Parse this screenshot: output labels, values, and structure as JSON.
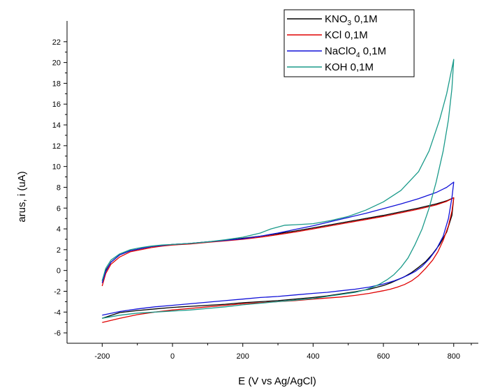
{
  "chart_data": {
    "type": "line",
    "xlabel": "E (V vs Ag/AgCl)",
    "ylabel": "arus, i (uA)",
    "xlim": [
      -300,
      870
    ],
    "ylim": [
      -7,
      24
    ],
    "x_ticks": [
      -200,
      0,
      200,
      400,
      600,
      800
    ],
    "y_ticks": [
      -6,
      -4,
      -2,
      0,
      2,
      4,
      6,
      8,
      10,
      12,
      14,
      16,
      18,
      20,
      22
    ],
    "grid": false,
    "legend_position": "top-right",
    "series": [
      {
        "name": "KNO3 0,1M",
        "legend_main": "KNO",
        "legend_sub": "3",
        "legend_rest": " 0,1M",
        "color": "#000000",
        "x": [
          -200,
          -190,
          -175,
          -150,
          -120,
          -90,
          -60,
          -30,
          0,
          50,
          100,
          150,
          200,
          250,
          300,
          350,
          400,
          450,
          500,
          550,
          600,
          650,
          700,
          750,
          780,
          800,
          795,
          780,
          760,
          740,
          720,
          700,
          680,
          660,
          640,
          620,
          600,
          560,
          520,
          480,
          440,
          400,
          350,
          300,
          250,
          200,
          150,
          100,
          50,
          0,
          -50,
          -100,
          -150,
          -200
        ],
        "y": [
          -1.0,
          0.0,
          0.8,
          1.5,
          1.9,
          2.1,
          2.3,
          2.4,
          2.5,
          2.6,
          2.75,
          2.9,
          3.1,
          3.3,
          3.55,
          3.8,
          4.1,
          4.4,
          4.7,
          5.0,
          5.3,
          5.65,
          6.0,
          6.4,
          6.7,
          7.0,
          5.3,
          3.7,
          2.5,
          1.6,
          0.85,
          0.3,
          -0.2,
          -0.6,
          -0.9,
          -1.2,
          -1.45,
          -1.8,
          -2.05,
          -2.25,
          -2.45,
          -2.6,
          -2.75,
          -2.9,
          -3.0,
          -3.1,
          -3.25,
          -3.35,
          -3.45,
          -3.55,
          -3.7,
          -3.85,
          -4.05,
          -4.6
        ]
      },
      {
        "name": "KCl 0,1M",
        "legend_main": "KCl 0,1M",
        "legend_sub": "",
        "legend_rest": "",
        "color": "#e00000",
        "x": [
          -200,
          -190,
          -175,
          -150,
          -120,
          -90,
          -60,
          -30,
          0,
          50,
          100,
          150,
          200,
          250,
          300,
          350,
          400,
          450,
          500,
          550,
          600,
          650,
          700,
          750,
          780,
          800,
          795,
          785,
          770,
          755,
          740,
          720,
          700,
          680,
          660,
          640,
          620,
          600,
          560,
          520,
          480,
          440,
          400,
          350,
          300,
          250,
          200,
          150,
          100,
          50,
          0,
          -50,
          -100,
          -150,
          -200
        ],
        "y": [
          -1.5,
          -0.3,
          0.6,
          1.3,
          1.8,
          2.0,
          2.2,
          2.35,
          2.45,
          2.55,
          2.7,
          2.85,
          3.0,
          3.2,
          3.45,
          3.7,
          4.0,
          4.3,
          4.6,
          4.9,
          5.2,
          5.55,
          5.9,
          6.3,
          6.65,
          7.0,
          5.7,
          4.3,
          2.9,
          1.8,
          1.0,
          0.2,
          -0.5,
          -1.0,
          -1.35,
          -1.6,
          -1.8,
          -1.95,
          -2.2,
          -2.4,
          -2.55,
          -2.65,
          -2.75,
          -2.9,
          -3.0,
          -3.1,
          -3.2,
          -3.35,
          -3.5,
          -3.65,
          -3.8,
          -4.0,
          -4.25,
          -4.6,
          -5.0
        ]
      },
      {
        "name": "NaClO4 0,1M",
        "legend_main": "NaClO",
        "legend_sub": "4",
        "legend_rest": " 0,1M",
        "color": "#1010d8",
        "x": [
          -200,
          -190,
          -175,
          -150,
          -120,
          -90,
          -60,
          -30,
          0,
          50,
          100,
          150,
          200,
          250,
          300,
          350,
          400,
          450,
          500,
          550,
          600,
          650,
          700,
          750,
          780,
          800,
          795,
          785,
          770,
          750,
          730,
          710,
          690,
          670,
          650,
          630,
          600,
          560,
          520,
          480,
          440,
          400,
          350,
          300,
          250,
          200,
          150,
          100,
          50,
          0,
          -50,
          -100,
          -150,
          -200
        ],
        "y": [
          -1.2,
          -0.1,
          0.8,
          1.5,
          1.9,
          2.1,
          2.3,
          2.4,
          2.5,
          2.6,
          2.75,
          2.9,
          3.05,
          3.3,
          3.6,
          3.95,
          4.3,
          4.7,
          5.1,
          5.5,
          5.95,
          6.4,
          6.9,
          7.5,
          8.0,
          8.5,
          7.0,
          5.0,
          3.3,
          2.0,
          1.1,
          0.4,
          -0.1,
          -0.45,
          -0.75,
          -1.0,
          -1.3,
          -1.6,
          -1.8,
          -1.95,
          -2.1,
          -2.2,
          -2.35,
          -2.5,
          -2.6,
          -2.75,
          -2.9,
          -3.05,
          -3.2,
          -3.35,
          -3.5,
          -3.7,
          -3.95,
          -4.3
        ]
      },
      {
        "name": "KOH 0,1M",
        "legend_main": "KOH 0,1M",
        "legend_sub": "",
        "legend_rest": "",
        "color": "#1a9a8a",
        "x": [
          -200,
          -190,
          -175,
          -150,
          -120,
          -90,
          -60,
          -30,
          0,
          50,
          100,
          150,
          200,
          250,
          280,
          320,
          350,
          400,
          450,
          500,
          550,
          600,
          650,
          700,
          730,
          760,
          780,
          800,
          795,
          785,
          770,
          750,
          730,
          710,
          690,
          670,
          650,
          630,
          610,
          590,
          570,
          550,
          520,
          480,
          440,
          400,
          350,
          300,
          250,
          200,
          150,
          100,
          50,
          0,
          -50,
          -100,
          -150,
          -200
        ],
        "y": [
          -1.0,
          0.2,
          1.0,
          1.6,
          2.0,
          2.2,
          2.35,
          2.45,
          2.5,
          2.6,
          2.75,
          2.95,
          3.2,
          3.6,
          4.0,
          4.35,
          4.4,
          4.5,
          4.8,
          5.2,
          5.8,
          6.6,
          7.7,
          9.5,
          11.5,
          14.5,
          17.0,
          20.3,
          17.5,
          14.5,
          11.5,
          8.5,
          6.0,
          4.0,
          2.5,
          1.2,
          0.3,
          -0.4,
          -0.9,
          -1.3,
          -1.6,
          -1.85,
          -2.1,
          -2.3,
          -2.5,
          -2.7,
          -2.85,
          -3.0,
          -3.15,
          -3.3,
          -3.5,
          -3.65,
          -3.8,
          -3.9,
          -4.0,
          -4.1,
          -4.3,
          -4.6
        ]
      }
    ]
  }
}
